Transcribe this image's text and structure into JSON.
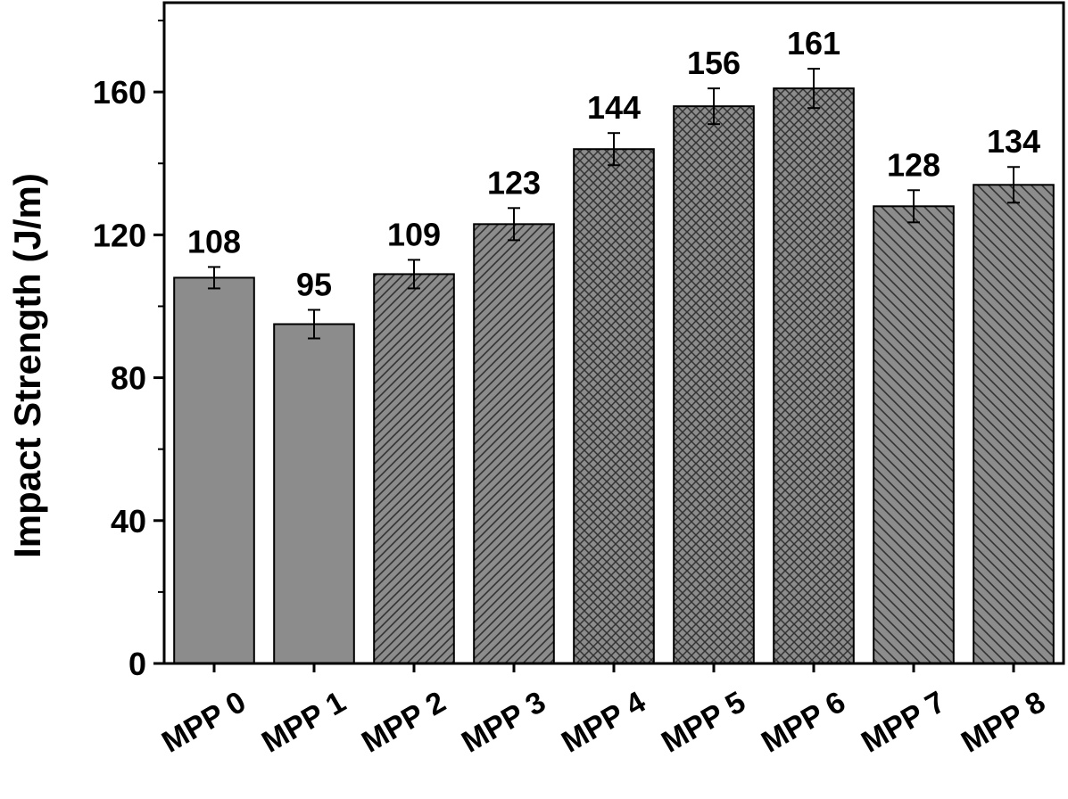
{
  "chart_data": {
    "type": "bar",
    "title": "",
    "xlabel": "",
    "ylabel": "Impact Strength (J/m)",
    "categories": [
      "MPP 0",
      "MPP 1",
      "MPP 2",
      "MPP 3",
      "MPP 4",
      "MPP 5",
      "MPP 6",
      "MPP 7",
      "MPP 8"
    ],
    "values": [
      108,
      95,
      109,
      123,
      144,
      156,
      161,
      128,
      134
    ],
    "errors": [
      3,
      4,
      4,
      4.5,
      4.5,
      5,
      5.5,
      4.5,
      5
    ],
    "data_labels": [
      "108",
      "95",
      "109",
      "123",
      "144",
      "156",
      "161",
      "128",
      "134"
    ],
    "patterns": [
      "solid",
      "solid",
      "diagonal-right",
      "diagonal-right",
      "crosshatch",
      "crosshatch",
      "crosshatch",
      "diagonal-left",
      "diagonal-left"
    ],
    "ylim": [
      0,
      185
    ],
    "yticks": [
      0,
      40,
      80,
      120,
      160
    ],
    "ytick_labels": [
      "0",
      "40",
      "80",
      "120",
      "160"
    ],
    "grid": false,
    "legend": "none",
    "colors": {
      "bar_fill": "#8c8c8c",
      "hatch": "#333333",
      "axis": "#000000"
    }
  }
}
